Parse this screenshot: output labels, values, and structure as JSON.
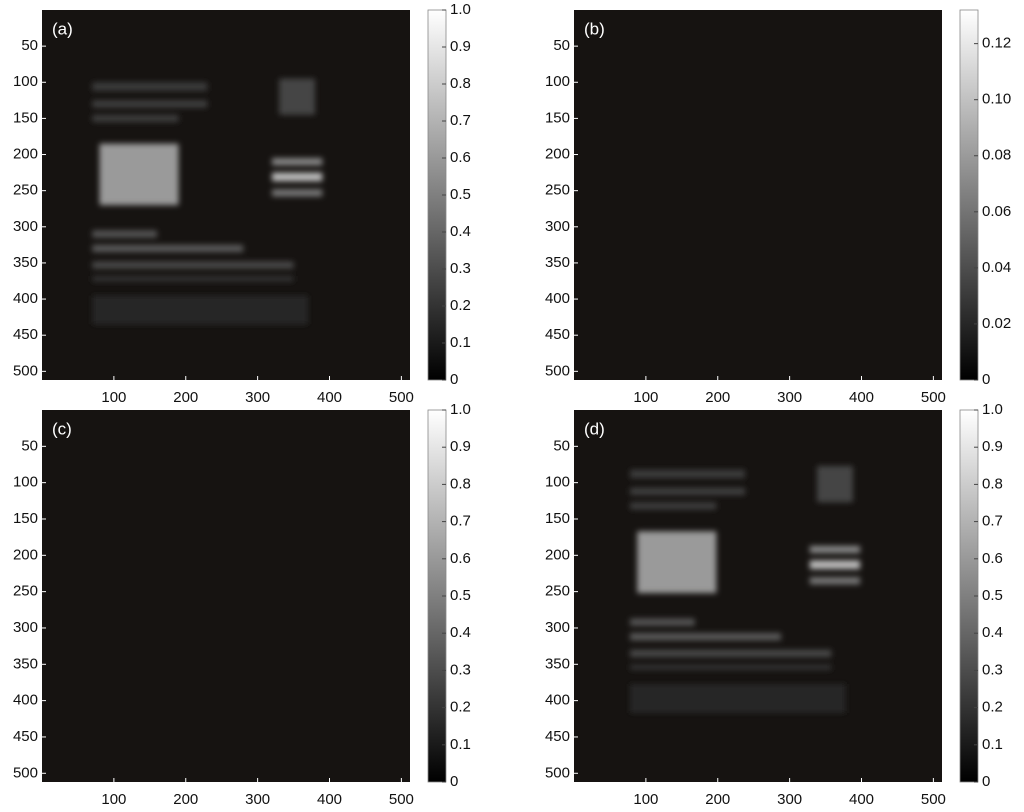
{
  "chart_data": [
    {
      "type": "image",
      "label": "(a)",
      "xlim": [
        0,
        512
      ],
      "ylim": [
        512,
        0
      ],
      "xticks": [
        100,
        200,
        300,
        400,
        500
      ],
      "yticks": [
        50,
        100,
        150,
        200,
        250,
        300,
        350,
        400,
        450,
        500
      ],
      "clim": [
        0,
        1
      ],
      "cticks": [
        0,
        0.1,
        0.2,
        0.3,
        0.4,
        0.5,
        0.6,
        0.7,
        0.8,
        0.9,
        {
          "value": 1,
          "label": "1.0"
        }
      ]
    },
    {
      "type": "image",
      "label": "(b)",
      "xlim": [
        0,
        512
      ],
      "ylim": [
        512,
        0
      ],
      "xticks": [
        100,
        200,
        300,
        400,
        500
      ],
      "yticks": [
        50,
        100,
        150,
        200,
        250,
        300,
        350,
        400,
        450,
        500
      ],
      "clim": [
        0,
        0.132
      ],
      "cticks": [
        0,
        0.02,
        0.04,
        0.06,
        0.08,
        {
          "value": 0.1,
          "label": "0.10"
        },
        0.12
      ]
    },
    {
      "type": "image",
      "label": "(c)",
      "xlim": [
        0,
        512
      ],
      "ylim": [
        512,
        0
      ],
      "xticks": [
        100,
        200,
        300,
        400,
        500
      ],
      "yticks": [
        50,
        100,
        150,
        200,
        250,
        300,
        350,
        400,
        450,
        500
      ],
      "clim": [
        0,
        1
      ],
      "cticks": [
        0,
        0.1,
        0.2,
        0.3,
        0.4,
        0.5,
        0.6,
        0.7,
        0.8,
        0.9,
        {
          "value": 1,
          "label": "1.0"
        }
      ]
    },
    {
      "type": "image",
      "label": "(d)",
      "xlim": [
        0,
        512
      ],
      "ylim": [
        512,
        0
      ],
      "xticks": [
        100,
        200,
        300,
        400,
        500
      ],
      "yticks": [
        50,
        100,
        150,
        200,
        250,
        300,
        350,
        400,
        450,
        500
      ],
      "clim": [
        0,
        1
      ],
      "cticks": [
        0,
        0.1,
        0.2,
        0.3,
        0.4,
        0.5,
        0.6,
        0.7,
        0.8,
        0.9,
        {
          "value": 1,
          "label": "1.0"
        }
      ]
    }
  ]
}
